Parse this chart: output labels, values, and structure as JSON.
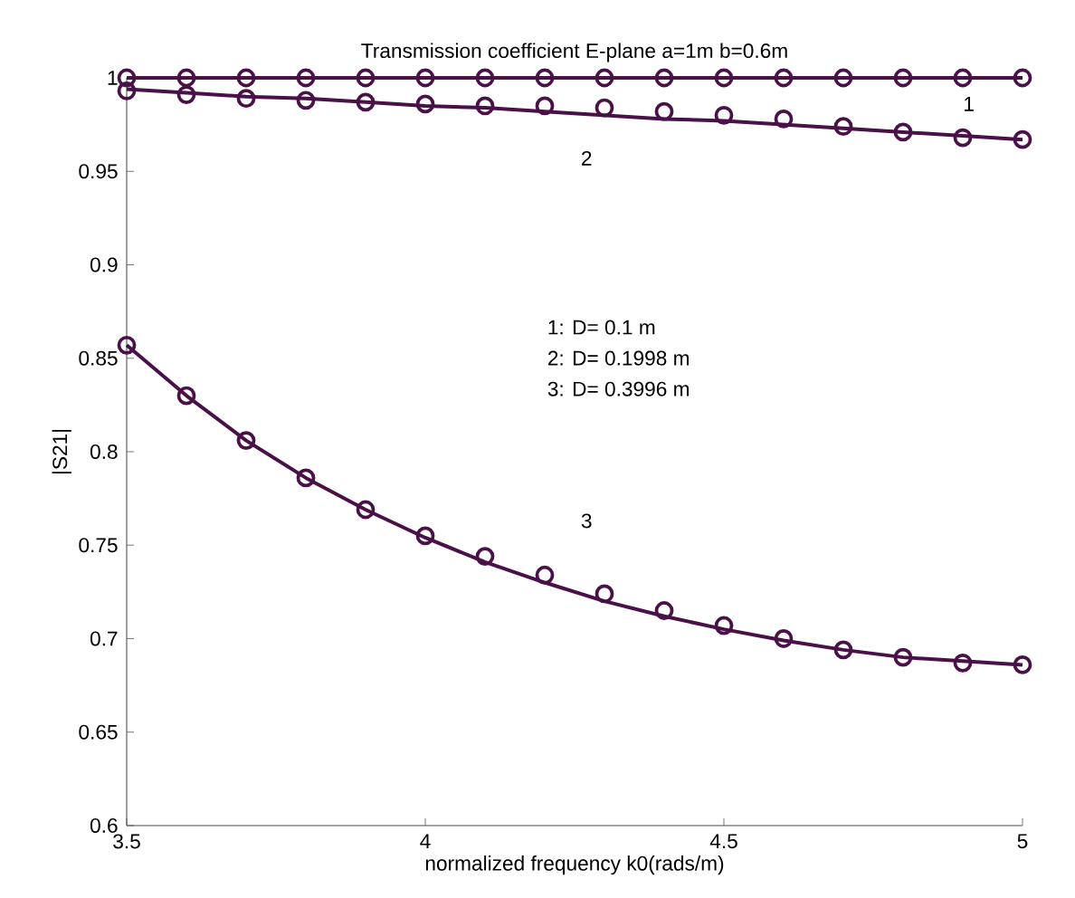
{
  "chart_data": {
    "type": "line",
    "title": "Transmission coefficient E-plane a=1m b=0.6m",
    "xlabel": "normalized frequency k0(rads/m)",
    "ylabel": "|S21|",
    "x": [
      3.5,
      3.6,
      3.7,
      3.8,
      3.9,
      4.0,
      4.1,
      4.2,
      4.3,
      4.4,
      4.5,
      4.6,
      4.7,
      4.8,
      4.9,
      5.0
    ],
    "series": [
      {
        "color": "#4a1048",
        "values": [
          1.0,
          1.0,
          1.0,
          1.0,
          1.0,
          1.0,
          1.0,
          1.0,
          1.0,
          1.0,
          1.0,
          1.0,
          1.0,
          1.0,
          1.0,
          1.0
        ]
      },
      {
        "color": "#4a1048",
        "values": [
          0.994,
          0.992,
          0.99,
          0.989,
          0.987,
          0.985,
          0.984,
          0.982,
          0.98,
          0.978,
          0.977,
          0.975,
          0.973,
          0.971,
          0.969,
          0.967
        ]
      },
      {
        "color": "#4a1048",
        "values": [
          0.857,
          0.83,
          0.806,
          0.786,
          0.769,
          0.754,
          0.741,
          0.73,
          0.72,
          0.712,
          0.705,
          0.699,
          0.694,
          0.69,
          0.688,
          0.686
        ]
      },
      {
        "type": "scatter",
        "marker": "circle",
        "color": "#4a1048",
        "values": [
          1.0,
          1.0,
          1.0,
          1.0,
          1.0,
          1.0,
          1.0,
          1.0,
          1.0,
          1.0,
          1.0,
          1.0,
          1.0,
          1.0,
          1.0,
          1.0
        ]
      },
      {
        "type": "scatter",
        "marker": "circle",
        "color": "#4a1048",
        "values": [
          0.993,
          0.991,
          0.989,
          0.988,
          0.987,
          0.986,
          0.985,
          0.985,
          0.984,
          0.982,
          0.98,
          0.978,
          0.974,
          0.971,
          0.968,
          0.967
        ]
      },
      {
        "type": "scatter",
        "marker": "circle",
        "color": "#4a1048",
        "values": [
          0.857,
          0.83,
          0.806,
          0.786,
          0.769,
          0.755,
          0.744,
          0.734,
          0.724,
          0.715,
          0.707,
          0.7,
          0.694,
          0.69,
          0.687,
          0.686
        ]
      }
    ],
    "xlim": [
      3.5,
      5
    ],
    "ylim": [
      0.6,
      1
    ],
    "xticks": [
      3.5,
      4,
      4.5,
      5
    ],
    "yticks": [
      0.6,
      0.65,
      0.7,
      0.75,
      0.8,
      0.85,
      0.9,
      0.95,
      1
    ],
    "grid": false,
    "annotations": [
      "1",
      "2",
      "3",
      "1: D= 0.1 m",
      "2: D= 0.1998 m",
      "3: D= 0.3996 m"
    ]
  }
}
